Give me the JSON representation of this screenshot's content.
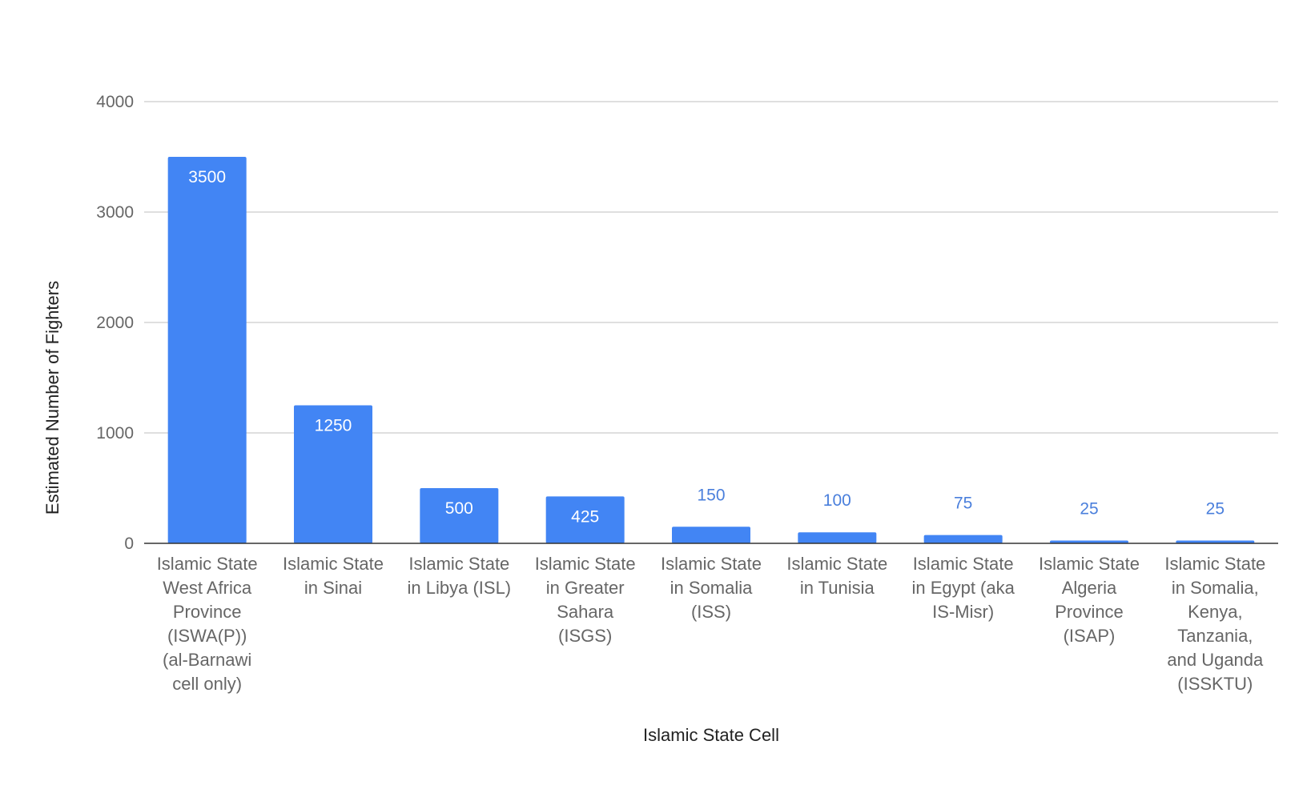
{
  "chart_data": {
    "type": "bar",
    "title": "",
    "xlabel": "Islamic State Cell",
    "ylabel": "Estimated Number of Fighters",
    "ylim": [
      0,
      4000
    ],
    "yticks": [
      0,
      1000,
      2000,
      3000,
      4000
    ],
    "grid": true,
    "legend": "none",
    "bar_color": "#4285f4",
    "inside_label_color": "#ffffff",
    "outside_label_color": "#4a7fdc",
    "categories": [
      [
        "Islamic State",
        "West Africa",
        "Province",
        "(ISWA(P))",
        "(al-Barnawi",
        "cell only)"
      ],
      [
        "Islamic State",
        "in Sinai"
      ],
      [
        "Islamic State",
        "in Libya (ISL)"
      ],
      [
        "Islamic State",
        "in Greater",
        "Sahara",
        "(ISGS)"
      ],
      [
        "Islamic State",
        "in Somalia",
        "(ISS)"
      ],
      [
        "Islamic State",
        "in Tunisia"
      ],
      [
        "Islamic State",
        "in Egypt (aka",
        "IS-Misr)"
      ],
      [
        "Islamic State",
        "Algeria",
        "Province",
        "(ISAP)"
      ],
      [
        "Islamic State",
        "in Somalia,",
        "Kenya,",
        "Tanzania,",
        "and Uganda",
        "(ISSKTU)"
      ]
    ],
    "values": [
      3500,
      1250,
      500,
      425,
      150,
      100,
      75,
      25,
      25
    ],
    "data_labels": [
      "3500",
      "1250",
      "500",
      "425",
      "150",
      "100",
      "75",
      "25",
      "25"
    ]
  }
}
